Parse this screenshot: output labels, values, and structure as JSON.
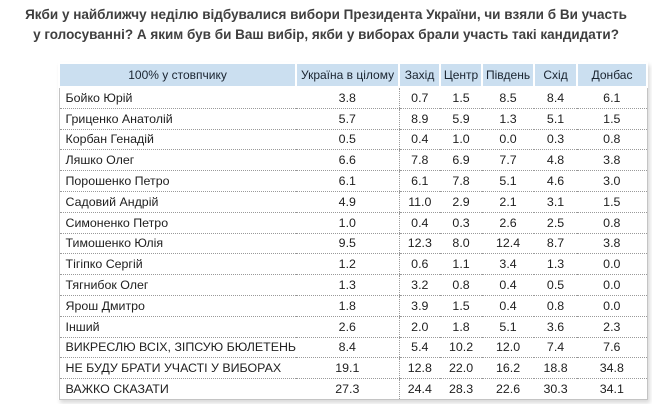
{
  "page": {
    "title": "Якби у найближчу неділю відбувалися вибори Президента України, чи взяли б Ви участь у голосуванні? А яким був би Ваш вибір, якби у виборах брали участь такі кандидати?"
  },
  "table": {
    "corner_label": "100% у стовпчику"
  },
  "colors": {
    "header_bg": "#cbdff0",
    "header_separator": "#ffffff",
    "header_text": "#1a2430",
    "row_separator": "#9a9a9a",
    "table_border": "#c4c4c4",
    "title_text": "#3f3f3f",
    "body_text": "#1e1e1e",
    "page_bg": "#ffffff"
  },
  "chart_data": {
    "type": "table",
    "title": "Якби у найближчу неділю відбувалися вибори Президента України, чи взяли б Ви участь у голосуванні? А яким був би Ваш вибір, якби у виборах брали участь такі кандидати?",
    "corner_label": "100% у стовпчику",
    "columns": [
      "Україна в цілому",
      "Захід",
      "Центр",
      "Південь",
      "Схід",
      "Донбас"
    ],
    "rows": [
      {
        "label": "Бойко Юрій",
        "values": [
          3.8,
          0.7,
          1.5,
          8.5,
          8.4,
          6.1
        ]
      },
      {
        "label": "Гриценко Анатолій",
        "values": [
          5.7,
          8.9,
          5.9,
          1.3,
          5.1,
          1.5
        ]
      },
      {
        "label": "Корбан Генадій",
        "values": [
          0.5,
          0.4,
          1.0,
          0.0,
          0.3,
          0.8
        ]
      },
      {
        "label": "Ляшко Олег",
        "values": [
          6.6,
          7.8,
          6.9,
          7.7,
          4.8,
          3.8
        ]
      },
      {
        "label": "Порошенко Петро",
        "values": [
          6.1,
          6.1,
          7.8,
          5.1,
          4.6,
          3.0
        ]
      },
      {
        "label": "Садовий Андрій",
        "values": [
          4.9,
          11.0,
          2.9,
          2.1,
          3.1,
          1.5
        ]
      },
      {
        "label": "Симоненко Петро",
        "values": [
          1.0,
          0.4,
          0.3,
          2.6,
          2.5,
          0.8
        ]
      },
      {
        "label": "Тимошенко Юлія",
        "values": [
          9.5,
          12.3,
          8.0,
          12.4,
          8.7,
          3.8
        ]
      },
      {
        "label": "Тігіпко Сергій",
        "values": [
          1.2,
          0.6,
          1.1,
          3.4,
          1.3,
          0.0
        ]
      },
      {
        "label": "Тягнибок Олег",
        "values": [
          1.3,
          3.2,
          0.8,
          0.4,
          0.5,
          0.0
        ]
      },
      {
        "label": "Ярош Дмитро",
        "values": [
          1.8,
          3.9,
          1.5,
          0.4,
          0.8,
          0.0
        ]
      },
      {
        "label": "Інший",
        "values": [
          2.6,
          2.0,
          1.8,
          5.1,
          3.6,
          2.3
        ]
      },
      {
        "label": "ВИКРЕСЛЮ ВСІХ, ЗІПСУЮ БЮЛЕТЕНЬ",
        "values": [
          8.4,
          5.4,
          10.2,
          12.0,
          7.4,
          7.6
        ]
      },
      {
        "label": "НЕ БУДУ БРАТИ УЧАСТІ У ВИБОРАХ",
        "values": [
          19.1,
          12.8,
          22.0,
          16.2,
          18.8,
          34.8
        ]
      },
      {
        "label": "ВАЖКО СКАЗАТИ",
        "values": [
          27.3,
          24.4,
          28.3,
          22.6,
          30.3,
          34.1
        ]
      }
    ]
  }
}
